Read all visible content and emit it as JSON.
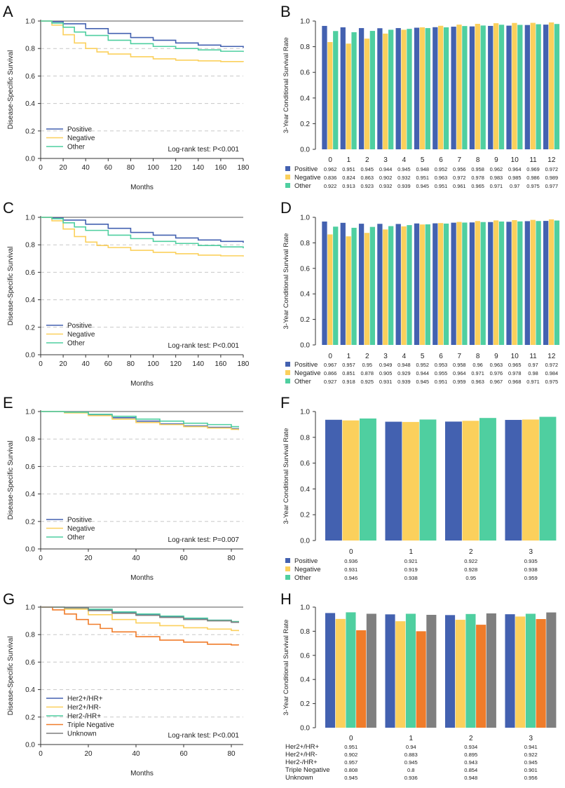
{
  "colors": {
    "positive": "#4361b0",
    "negative": "#fbd05c",
    "other": "#4fcfa0",
    "her2p_hrp": "#4361b0",
    "her2p_hrm": "#fbd05c",
    "her2m_hrp": "#4fcfa0",
    "triple": "#f07c2a",
    "unknown": "#7f7f7f"
  },
  "chart_data": [
    {
      "panel": "A",
      "type": "line",
      "xlabel": "Months",
      "ylabel": "Disease-Specific Survival",
      "xlim": [
        0,
        180
      ],
      "ylim": [
        0,
        1
      ],
      "xticks": [
        "0",
        "20",
        "40",
        "60",
        "80",
        "100",
        "120",
        "140",
        "160",
        "180"
      ],
      "yticks": [
        "0.0",
        "0.2",
        "0.4",
        "0.6",
        "0.8",
        "1.0"
      ],
      "annotation": "Log-rank test: P<0.001",
      "legend": [
        "Positive",
        "Negative",
        "Other"
      ],
      "series": [
        {
          "name": "Positive",
          "color_key": "positive",
          "x": [
            0,
            10,
            20,
            40,
            60,
            80,
            100,
            120,
            140,
            160,
            180
          ],
          "y": [
            1,
            0.995,
            0.98,
            0.945,
            0.91,
            0.88,
            0.86,
            0.84,
            0.825,
            0.815,
            0.805
          ]
        },
        {
          "name": "Negative",
          "color_key": "negative",
          "x": [
            0,
            10,
            20,
            30,
            40,
            50,
            60,
            80,
            100,
            120,
            140,
            160,
            180
          ],
          "y": [
            1,
            0.97,
            0.9,
            0.84,
            0.8,
            0.775,
            0.76,
            0.74,
            0.725,
            0.715,
            0.71,
            0.705,
            0.702
          ]
        },
        {
          "name": "Other",
          "color_key": "other",
          "x": [
            0,
            10,
            20,
            30,
            40,
            60,
            80,
            100,
            120,
            140,
            160,
            180
          ],
          "y": [
            1,
            0.985,
            0.955,
            0.92,
            0.895,
            0.86,
            0.835,
            0.815,
            0.8,
            0.79,
            0.78,
            0.775
          ]
        }
      ]
    },
    {
      "panel": "B",
      "type": "bar",
      "ylabel": "3-Year Conditional Survival Rate",
      "ylim": [
        0,
        1
      ],
      "yticks": [
        "0.0",
        "0.2",
        "0.4",
        "0.6",
        "0.8",
        "1.0"
      ],
      "categories": [
        "0",
        "1",
        "2",
        "3",
        "4",
        "5",
        "6",
        "7",
        "8",
        "9",
        "10",
        "11",
        "12"
      ],
      "table_font": 7.4,
      "series": [
        {
          "name": "Positive",
          "color_key": "positive",
          "labels": [
            "0.962",
            "0.951",
            "0.945",
            "0.944",
            "0.945",
            "0.948",
            "0.952",
            "0.956",
            "0.958",
            "0.962",
            "0.964",
            "0.969",
            "0.972"
          ],
          "values": [
            0.962,
            0.951,
            0.945,
            0.944,
            0.945,
            0.948,
            0.952,
            0.956,
            0.958,
            0.962,
            0.964,
            0.969,
            0.972
          ]
        },
        {
          "name": "Negative",
          "color_key": "negative",
          "labels": [
            "0.836",
            "0.824",
            "0.863",
            "0.902",
            "0.932",
            "0.951",
            "0.963",
            "0.972",
            "0.978",
            "0.983",
            "0.985",
            "0.986",
            "0.989"
          ],
          "values": [
            0.836,
            0.824,
            0.863,
            0.902,
            0.932,
            0.951,
            0.963,
            0.972,
            0.978,
            0.983,
            0.985,
            0.986,
            0.989
          ]
        },
        {
          "name": "Other",
          "color_key": "other",
          "labels": [
            "0.922",
            "0.913",
            "0.923",
            "0.932",
            "0.939",
            "0.945",
            "0.951",
            "0.961",
            "0.965",
            "0.971",
            "0.97",
            "0.975",
            "0.977"
          ],
          "values": [
            0.922,
            0.913,
            0.923,
            0.932,
            0.939,
            0.945,
            0.951,
            0.961,
            0.965,
            0.971,
            0.97,
            0.975,
            0.977
          ]
        }
      ]
    },
    {
      "panel": "C",
      "type": "line",
      "xlabel": "Months",
      "ylabel": "Disease-Specific Survival",
      "xlim": [
        0,
        180
      ],
      "ylim": [
        0,
        1
      ],
      "xticks": [
        "0",
        "20",
        "40",
        "60",
        "80",
        "100",
        "120",
        "140",
        "160",
        "180"
      ],
      "yticks": [
        "0.0",
        "0.2",
        "0.4",
        "0.6",
        "0.8",
        "1.0"
      ],
      "annotation": "Log-rank test: P<0.001",
      "legend": [
        "Positive",
        "Negative",
        "Other"
      ],
      "series": [
        {
          "name": "Positive",
          "color_key": "positive",
          "x": [
            0,
            10,
            20,
            40,
            60,
            80,
            100,
            120,
            140,
            160,
            180
          ],
          "y": [
            1,
            0.995,
            0.98,
            0.95,
            0.92,
            0.89,
            0.87,
            0.85,
            0.835,
            0.825,
            0.815
          ]
        },
        {
          "name": "Negative",
          "color_key": "negative",
          "x": [
            0,
            10,
            20,
            30,
            40,
            50,
            60,
            80,
            100,
            120,
            140,
            160,
            180
          ],
          "y": [
            1,
            0.975,
            0.915,
            0.86,
            0.82,
            0.795,
            0.78,
            0.76,
            0.745,
            0.735,
            0.725,
            0.72,
            0.715
          ]
        },
        {
          "name": "Other",
          "color_key": "other",
          "x": [
            0,
            10,
            20,
            30,
            40,
            60,
            80,
            100,
            120,
            140,
            160,
            180
          ],
          "y": [
            1,
            0.99,
            0.96,
            0.93,
            0.905,
            0.87,
            0.845,
            0.825,
            0.81,
            0.795,
            0.785,
            0.775
          ]
        }
      ]
    },
    {
      "panel": "D",
      "type": "bar",
      "ylabel": "3-Year Conditional Survival Rate",
      "ylim": [
        0,
        1
      ],
      "yticks": [
        "0.0",
        "0.2",
        "0.4",
        "0.6",
        "0.8",
        "1.0"
      ],
      "categories": [
        "0",
        "1",
        "2",
        "3",
        "4",
        "5",
        "6",
        "7",
        "8",
        "9",
        "10",
        "11",
        "12"
      ],
      "table_font": 7.4,
      "series": [
        {
          "name": "Positive",
          "color_key": "positive",
          "labels": [
            "0.967",
            "0.957",
            "0.95",
            "0.949",
            "0.948",
            "0.952",
            "0.953",
            "0.958",
            "0.96",
            "0.963",
            "0.965",
            "0.97",
            "0.972"
          ],
          "values": [
            0.967,
            0.957,
            0.95,
            0.949,
            0.948,
            0.952,
            0.953,
            0.958,
            0.96,
            0.963,
            0.965,
            0.97,
            0.972
          ]
        },
        {
          "name": "Negative",
          "color_key": "negative",
          "labels": [
            "0.866",
            "0.851",
            "0.878",
            "0.905",
            "0.929",
            "0.944",
            "0.955",
            "0.964",
            "0.971",
            "0.976",
            "0.978",
            "0.98",
            "0.984"
          ],
          "values": [
            0.866,
            0.851,
            0.878,
            0.905,
            0.929,
            0.944,
            0.955,
            0.964,
            0.971,
            0.976,
            0.978,
            0.98,
            0.984
          ]
        },
        {
          "name": "Other",
          "color_key": "other",
          "labels": [
            "0.927",
            "0.918",
            "0.925",
            "0.931",
            "0.939",
            "0.945",
            "0.951",
            "0.959",
            "0.963",
            "0.967",
            "0.968",
            "0.971",
            "0.975"
          ],
          "values": [
            0.927,
            0.918,
            0.925,
            0.931,
            0.939,
            0.945,
            0.951,
            0.959,
            0.963,
            0.967,
            0.968,
            0.971,
            0.975
          ]
        }
      ]
    },
    {
      "panel": "E",
      "type": "line",
      "xlabel": "Months",
      "ylabel": "Disease-Specific Survival",
      "xlim": [
        0,
        85
      ],
      "ylim": [
        0,
        1
      ],
      "xticks": [
        "0",
        "20",
        "40",
        "60",
        "80"
      ],
      "xtick_values": [
        0,
        20,
        40,
        60,
        80
      ],
      "yticks": [
        "0.0",
        "0.2",
        "0.4",
        "0.6",
        "0.8",
        "1.0"
      ],
      "annotation": "Log-rank test: P=0.007",
      "legend": [
        "Positive",
        "Negative",
        "Other"
      ],
      "series": [
        {
          "name": "Positive",
          "color_key": "positive",
          "x": [
            0,
            10,
            20,
            30,
            40,
            50,
            60,
            70,
            80,
            83
          ],
          "y": [
            1,
            0.995,
            0.975,
            0.955,
            0.93,
            0.91,
            0.895,
            0.885,
            0.875,
            0.87
          ]
        },
        {
          "name": "Negative",
          "color_key": "negative",
          "x": [
            0,
            10,
            20,
            30,
            40,
            50,
            60,
            70,
            80,
            83
          ],
          "y": [
            1,
            0.99,
            0.97,
            0.945,
            0.92,
            0.905,
            0.89,
            0.88,
            0.87,
            0.865
          ]
        },
        {
          "name": "Other",
          "color_key": "other",
          "x": [
            0,
            10,
            20,
            30,
            40,
            50,
            60,
            70,
            80,
            83
          ],
          "y": [
            1,
            0.995,
            0.98,
            0.965,
            0.945,
            0.93,
            0.915,
            0.905,
            0.89,
            0.885
          ]
        }
      ]
    },
    {
      "panel": "F",
      "type": "bar",
      "ylabel": "3-Year Conditional Survival Rate",
      "ylim": [
        0,
        1
      ],
      "yticks": [
        "0.0",
        "0.2",
        "0.4",
        "0.6",
        "0.8",
        "1.0"
      ],
      "categories": [
        "0",
        "1",
        "2",
        "3"
      ],
      "table_font": 7.6,
      "series": [
        {
          "name": "Positive",
          "color_key": "positive",
          "labels": [
            "0.936",
            "0.921",
            "0.922",
            "0.935"
          ],
          "values": [
            0.936,
            0.921,
            0.922,
            0.935
          ]
        },
        {
          "name": "Negative",
          "color_key": "negative",
          "labels": [
            "0.931",
            "0.919",
            "0.928",
            "0.938"
          ],
          "values": [
            0.931,
            0.919,
            0.928,
            0.938
          ]
        },
        {
          "name": "Other",
          "color_key": "other",
          "labels": [
            "0.946",
            "0.938",
            "0.95",
            "0.959"
          ],
          "values": [
            0.946,
            0.938,
            0.95,
            0.959
          ]
        }
      ]
    },
    {
      "panel": "G",
      "type": "line",
      "xlabel": "Months",
      "ylabel": "Disease-Specific Survival",
      "xlim": [
        0,
        85
      ],
      "ylim": [
        0,
        1
      ],
      "xticks": [
        "0",
        "20",
        "40",
        "60",
        "80"
      ],
      "xtick_values": [
        0,
        20,
        40,
        60,
        80
      ],
      "yticks": [
        "0.0",
        "0.2",
        "0.4",
        "0.6",
        "0.8",
        "1.0"
      ],
      "annotation": "Log-rank test: P<0.001",
      "legend": [
        "Her2+/HR+",
        "Her2+/HR-",
        "Her2-/HR+",
        "Triple Negative",
        "Unknown"
      ],
      "series": [
        {
          "name": "Her2+/HR+",
          "color_key": "her2p_hrp",
          "x": [
            0,
            10,
            20,
            30,
            40,
            50,
            60,
            70,
            80,
            83
          ],
          "y": [
            1,
            0.995,
            0.98,
            0.96,
            0.945,
            0.93,
            0.915,
            0.905,
            0.89,
            0.885
          ]
        },
        {
          "name": "Her2+/HR-",
          "color_key": "her2p_hrm",
          "x": [
            0,
            10,
            20,
            30,
            40,
            50,
            60,
            70,
            80,
            83
          ],
          "y": [
            1,
            0.985,
            0.945,
            0.91,
            0.885,
            0.865,
            0.85,
            0.84,
            0.83,
            0.825
          ]
        },
        {
          "name": "Her2-/HR+",
          "color_key": "her2m_hrp",
          "x": [
            0,
            10,
            20,
            30,
            40,
            50,
            60,
            70,
            80,
            83
          ],
          "y": [
            1,
            0.995,
            0.985,
            0.965,
            0.95,
            0.935,
            0.92,
            0.905,
            0.895,
            0.888
          ]
        },
        {
          "name": "Triple Negative",
          "color_key": "triple",
          "x": [
            0,
            5,
            10,
            15,
            20,
            25,
            30,
            40,
            50,
            60,
            70,
            80,
            83
          ],
          "y": [
            1,
            0.98,
            0.95,
            0.91,
            0.875,
            0.845,
            0.82,
            0.785,
            0.76,
            0.745,
            0.73,
            0.725,
            0.722
          ]
        },
        {
          "name": "Unknown",
          "color_key": "unknown",
          "x": [
            0,
            10,
            20,
            30,
            40,
            50,
            60,
            70,
            80,
            83
          ],
          "y": [
            1,
            0.995,
            0.975,
            0.955,
            0.94,
            0.925,
            0.91,
            0.9,
            0.89,
            0.885
          ]
        }
      ]
    },
    {
      "panel": "H",
      "type": "bar",
      "ylabel": "3-Year Conditional Survival Rate",
      "ylim": [
        0,
        1
      ],
      "yticks": [
        "0.0",
        "0.2",
        "0.4",
        "0.6",
        "0.8",
        "1.0"
      ],
      "categories": [
        "0",
        "1",
        "2",
        "3"
      ],
      "table_font": 7.6,
      "series": [
        {
          "name": "Her2+/HR+",
          "color_key": "her2p_hrp",
          "labels": [
            "0.951",
            "0.94",
            "0.934",
            "0.941"
          ],
          "values": [
            0.951,
            0.94,
            0.934,
            0.941
          ]
        },
        {
          "name": "Her2+/HR-",
          "color_key": "her2p_hrm",
          "labels": [
            "0.902",
            "0.883",
            "0.895",
            "0.922"
          ],
          "values": [
            0.902,
            0.883,
            0.895,
            0.922
          ]
        },
        {
          "name": "Her2-/HR+",
          "color_key": "her2m_hrp",
          "labels": [
            "0.957",
            "0.945",
            "0.943",
            "0.945"
          ],
          "values": [
            0.957,
            0.945,
            0.943,
            0.945
          ]
        },
        {
          "name": "Triple Negative",
          "color_key": "triple",
          "labels": [
            "0.808",
            "0.8",
            "0.854",
            "0.901"
          ],
          "values": [
            0.808,
            0.8,
            0.854,
            0.901
          ]
        },
        {
          "name": "Unknown",
          "color_key": "unknown",
          "labels": [
            "0.945",
            "0.936",
            "0.948",
            "0.956"
          ],
          "values": [
            0.945,
            0.936,
            0.948,
            0.956
          ]
        }
      ]
    }
  ]
}
